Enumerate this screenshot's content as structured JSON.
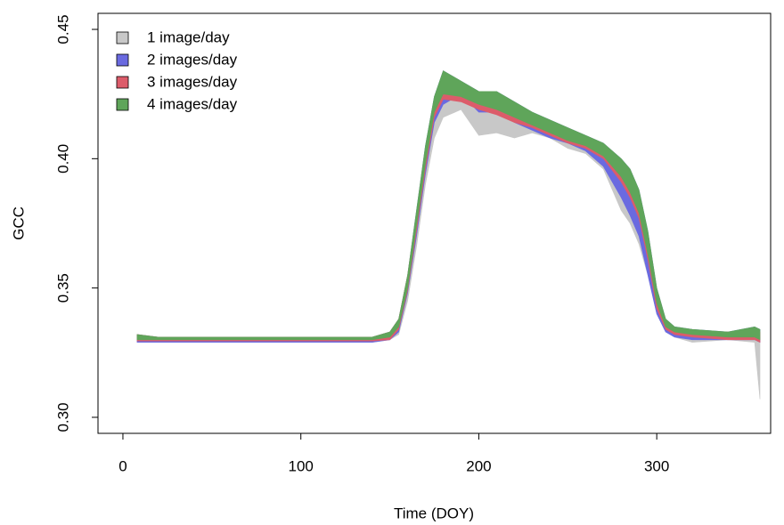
{
  "chart_data": {
    "type": "band",
    "x_label": "Time (DOY)",
    "y_label": "GCC",
    "xlim": [
      -14,
      364
    ],
    "ylim": [
      0.2938,
      0.4562
    ],
    "xticks": [
      0,
      100,
      200,
      300
    ],
    "yticks": [
      {
        "value": 0.3,
        "label": "0.30"
      },
      {
        "value": 0.35,
        "label": "0.35"
      },
      {
        "value": 0.4,
        "label": "0.40"
      },
      {
        "value": 0.45,
        "label": "0.45"
      }
    ],
    "legend": "top-left",
    "x": [
      8,
      20,
      40,
      60,
      80,
      100,
      120,
      140,
      150,
      155,
      160,
      165,
      170,
      175,
      180,
      190,
      200,
      210,
      220,
      230,
      240,
      250,
      260,
      270,
      280,
      285,
      290,
      295,
      300,
      305,
      310,
      320,
      340,
      355,
      358
    ],
    "series": [
      {
        "name": "1 image/day",
        "color": "#c8c8c8",
        "upper": [
          0.331,
          0.33,
          0.33,
          0.33,
          0.33,
          0.33,
          0.33,
          0.33,
          0.332,
          0.337,
          0.353,
          0.377,
          0.401,
          0.42,
          0.428,
          0.427,
          0.424,
          0.424,
          0.42,
          0.416,
          0.413,
          0.41,
          0.407,
          0.404,
          0.398,
          0.394,
          0.385,
          0.368,
          0.346,
          0.335,
          0.333,
          0.332,
          0.331,
          0.332,
          0.331
        ],
        "lower": [
          0.329,
          0.329,
          0.329,
          0.329,
          0.329,
          0.329,
          0.329,
          0.329,
          0.33,
          0.332,
          0.345,
          0.366,
          0.39,
          0.408,
          0.416,
          0.419,
          0.409,
          0.41,
          0.408,
          0.41,
          0.408,
          0.404,
          0.402,
          0.396,
          0.38,
          0.375,
          0.367,
          0.355,
          0.34,
          0.333,
          0.331,
          0.329,
          0.33,
          0.329,
          0.307
        ]
      },
      {
        "name": "2 images/day",
        "color": "#6a6ae0",
        "upper": [
          0.332,
          0.331,
          0.331,
          0.331,
          0.331,
          0.331,
          0.331,
          0.331,
          0.333,
          0.338,
          0.355,
          0.38,
          0.405,
          0.424,
          0.434,
          0.43,
          0.426,
          0.426,
          0.422,
          0.418,
          0.415,
          0.412,
          0.409,
          0.406,
          0.4,
          0.396,
          0.388,
          0.372,
          0.35,
          0.338,
          0.335,
          0.334,
          0.333,
          0.335,
          0.334
        ],
        "lower": [
          0.329,
          0.329,
          0.329,
          0.329,
          0.329,
          0.329,
          0.329,
          0.329,
          0.33,
          0.333,
          0.348,
          0.37,
          0.394,
          0.414,
          0.421,
          0.425,
          0.418,
          0.418,
          0.414,
          0.411,
          0.408,
          0.406,
          0.403,
          0.397,
          0.385,
          0.378,
          0.37,
          0.355,
          0.34,
          0.333,
          0.331,
          0.33,
          0.33,
          0.33,
          0.329
        ]
      },
      {
        "name": "3 images/day",
        "color": "#dc5c6a",
        "upper": [
          0.332,
          0.331,
          0.331,
          0.331,
          0.331,
          0.331,
          0.331,
          0.331,
          0.333,
          0.338,
          0.355,
          0.379,
          0.404,
          0.423,
          0.433,
          0.429,
          0.425,
          0.425,
          0.421,
          0.417,
          0.414,
          0.411,
          0.408,
          0.405,
          0.399,
          0.395,
          0.387,
          0.371,
          0.349,
          0.337,
          0.334,
          0.333,
          0.333,
          0.334,
          0.333
        ],
        "lower": [
          0.3295,
          0.3295,
          0.3295,
          0.3295,
          0.3295,
          0.3295,
          0.3295,
          0.3295,
          0.33,
          0.334,
          0.349,
          0.372,
          0.396,
          0.416,
          0.423,
          0.422,
          0.419,
          0.417,
          0.414,
          0.412,
          0.409,
          0.406,
          0.404,
          0.4,
          0.391,
          0.385,
          0.377,
          0.361,
          0.342,
          0.334,
          0.332,
          0.331,
          0.33,
          0.33,
          0.329
        ]
      },
      {
        "name": "4 images/day",
        "color": "#5fa55a",
        "upper": [
          0.332,
          0.331,
          0.331,
          0.331,
          0.331,
          0.331,
          0.331,
          0.331,
          0.333,
          0.338,
          0.355,
          0.38,
          0.405,
          0.424,
          0.434,
          0.43,
          0.426,
          0.426,
          0.422,
          0.418,
          0.415,
          0.412,
          0.409,
          0.406,
          0.4,
          0.396,
          0.388,
          0.372,
          0.35,
          0.338,
          0.335,
          0.334,
          0.333,
          0.335,
          0.334
        ],
        "lower": [
          0.33,
          0.33,
          0.33,
          0.33,
          0.33,
          0.33,
          0.33,
          0.33,
          0.331,
          0.335,
          0.35,
          0.374,
          0.398,
          0.418,
          0.425,
          0.424,
          0.421,
          0.419,
          0.416,
          0.413,
          0.41,
          0.407,
          0.405,
          0.401,
          0.393,
          0.387,
          0.379,
          0.363,
          0.344,
          0.335,
          0.333,
          0.332,
          0.331,
          0.331,
          0.33
        ]
      }
    ]
  }
}
